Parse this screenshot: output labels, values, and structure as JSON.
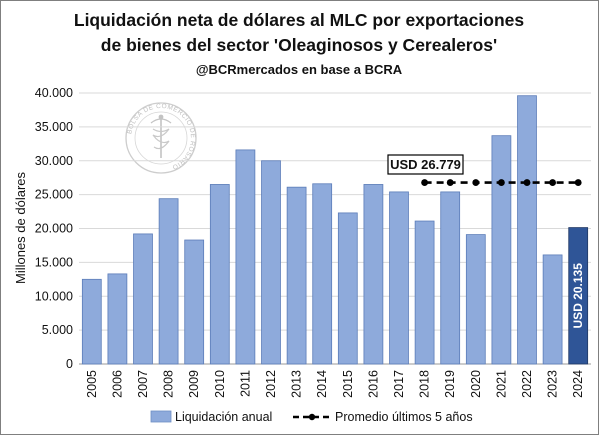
{
  "chart_data": {
    "type": "bar",
    "title_line1": "Liquidación neta de dólares al MLC por exportaciones",
    "title_line2": "de bienes del sector 'Oleaginosos y Cerealeros'",
    "subtitle": "@BCRmercados en base a BCRA",
    "ylabel": "Millones de dólares",
    "xlabel": "",
    "ylim": [
      0,
      40000
    ],
    "yticks": [
      "0",
      "5.000",
      "10.000",
      "15.000",
      "20.000",
      "25.000",
      "30.000",
      "35.000",
      "40.000"
    ],
    "grid": true,
    "categories": [
      "2005",
      "2006",
      "2007",
      "2008",
      "2009",
      "2010",
      "2011",
      "2012",
      "2013",
      "2014",
      "2015",
      "2016",
      "2017",
      "2018",
      "2019",
      "2020",
      "2021",
      "2022",
      "2023",
      "2024"
    ],
    "series": [
      {
        "name": "Liquidación anual",
        "color": "#8eaadb",
        "highlight_color": "#2f5597",
        "values": [
          12500,
          13300,
          19200,
          24400,
          18300,
          26500,
          31600,
          30000,
          26100,
          26600,
          22300,
          26500,
          25400,
          21100,
          25400,
          19100,
          33700,
          39600,
          16100,
          20135
        ]
      },
      {
        "name": "Promedio últimos 5 años",
        "color": "#000000",
        "style": "dashed-with-markers",
        "x": [
          "2018",
          "2019",
          "2020",
          "2021",
          "2022",
          "2023",
          "2024"
        ],
        "values": [
          26779,
          26779,
          26779,
          26779,
          26779,
          26779,
          26779
        ]
      }
    ],
    "annotations": {
      "average_callout": "USD 26.779",
      "last_bar_label": "USD 20.135"
    },
    "legend_position": "bottom"
  },
  "watermark": {
    "ring_text": "BOLSA DE COMERCIO DE ROSARIO",
    "icon": "caduceus-seal-icon"
  }
}
